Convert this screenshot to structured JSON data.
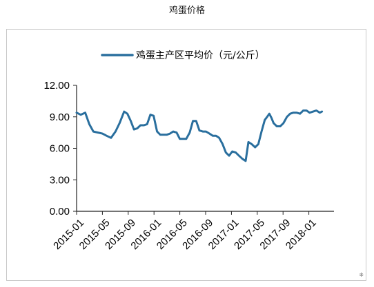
{
  "page": {
    "title": "鸡蛋价格"
  },
  "chart_data": {
    "type": "line",
    "title": "鸡蛋价格",
    "xlabel": "",
    "ylabel": "",
    "ylim": [
      0,
      12
    ],
    "y_ticks": [
      "0.00",
      "3.00",
      "6.00",
      "9.00",
      "12.00"
    ],
    "x_ticks": [
      "2015-01",
      "2015-05",
      "2015-09",
      "2016-01",
      "2016-05",
      "2016-09",
      "2017-01",
      "2017-05",
      "2017-09",
      "2018-01"
    ],
    "legend_position": "top",
    "grid": false,
    "colors": {
      "series": "#2a6f9e",
      "axis": "#222222"
    },
    "series": [
      {
        "name": "鸡蛋主产区平均价（元/公斤）",
        "x": [
          "2015-01-01",
          "2015-01-20",
          "2015-02-10",
          "2015-03-01",
          "2015-03-20",
          "2015-04-10",
          "2015-05-01",
          "2015-05-20",
          "2015-06-10",
          "2015-07-01",
          "2015-07-20",
          "2015-08-10",
          "2015-08-25",
          "2015-09-10",
          "2015-09-25",
          "2015-10-10",
          "2015-10-25",
          "2015-11-10",
          "2015-11-25",
          "2015-12-10",
          "2015-12-25",
          "2016-01-10",
          "2016-01-25",
          "2016-02-10",
          "2016-02-25",
          "2016-03-10",
          "2016-03-25",
          "2016-04-10",
          "2016-04-25",
          "2016-05-10",
          "2016-05-25",
          "2016-06-10",
          "2016-06-25",
          "2016-07-10",
          "2016-07-25",
          "2016-08-10",
          "2016-08-25",
          "2016-09-10",
          "2016-09-25",
          "2016-10-10",
          "2016-10-25",
          "2016-11-10",
          "2016-11-25",
          "2016-12-10",
          "2016-12-25",
          "2017-01-10",
          "2017-01-25",
          "2017-02-10",
          "2017-02-25",
          "2017-03-10",
          "2017-03-25",
          "2017-04-10",
          "2017-04-25",
          "2017-05-10",
          "2017-05-25",
          "2017-06-05",
          "2017-06-15",
          "2017-06-25",
          "2017-07-05",
          "2017-07-20",
          "2017-08-05",
          "2017-08-20",
          "2017-09-05",
          "2017-09-20",
          "2017-10-05",
          "2017-10-20",
          "2017-11-05",
          "2017-11-20",
          "2017-12-05",
          "2017-12-20",
          "2018-01-05",
          "2018-01-20",
          "2018-02-05",
          "2018-02-15"
        ],
        "values": [
          9.4,
          9.2,
          9.4,
          8.3,
          7.6,
          7.5,
          7.4,
          7.2,
          7.0,
          7.6,
          8.4,
          9.5,
          9.3,
          8.6,
          7.8,
          7.9,
          8.2,
          8.2,
          8.3,
          9.2,
          9.1,
          7.6,
          7.3,
          7.3,
          7.3,
          7.4,
          7.6,
          7.5,
          6.9,
          6.9,
          6.9,
          7.5,
          8.6,
          8.6,
          7.7,
          7.6,
          7.6,
          7.4,
          7.2,
          7.2,
          7.0,
          6.4,
          5.6,
          5.3,
          5.7,
          5.6,
          5.3,
          5.0,
          4.8,
          6.6,
          6.4,
          6.1,
          6.4,
          7.6,
          8.7,
          9.0,
          9.3,
          8.9,
          8.4,
          8.1,
          8.1,
          8.4,
          9.0,
          9.3,
          9.4,
          9.4,
          9.3,
          9.6,
          9.6,
          9.4,
          9.5,
          9.6,
          9.4,
          9.5
        ]
      }
    ]
  }
}
